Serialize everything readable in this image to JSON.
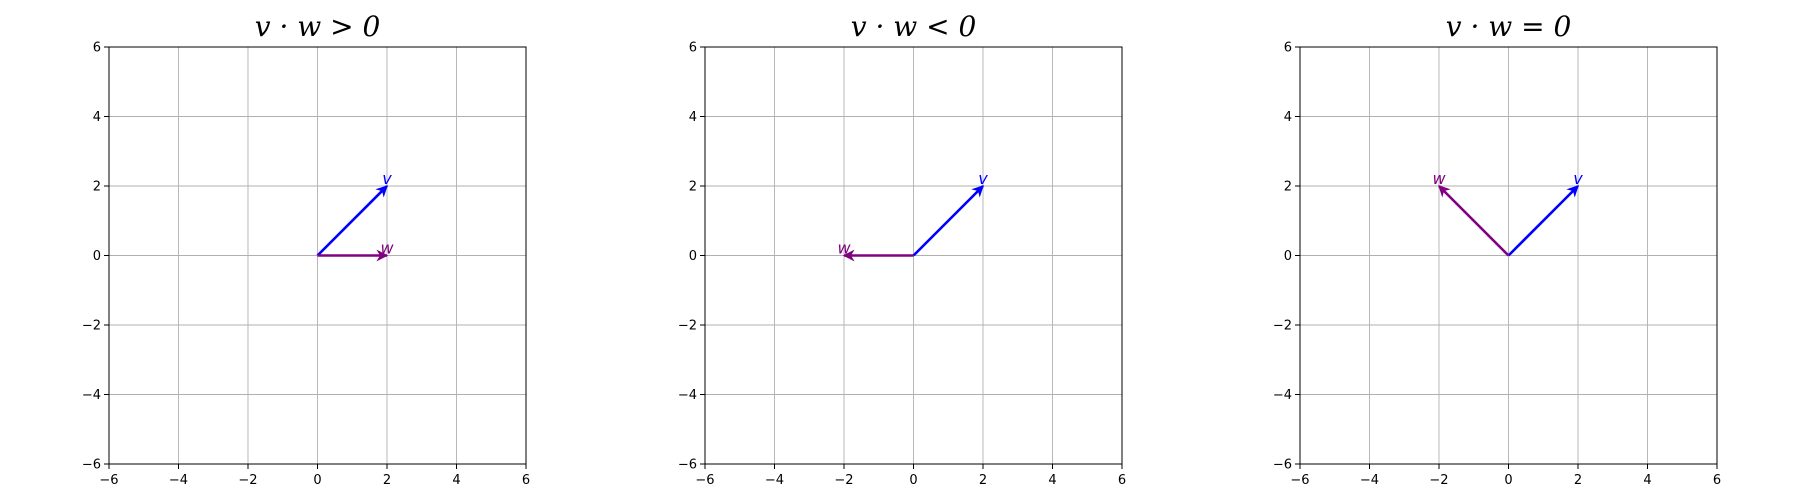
{
  "chart_data": [
    {
      "type": "vector",
      "title": "v · w > 0",
      "xlim": [
        -6,
        6
      ],
      "ylim": [
        -6,
        6
      ],
      "xticks": [
        -6,
        -4,
        -2,
        0,
        2,
        4,
        6
      ],
      "yticks": [
        -6,
        -4,
        -2,
        0,
        2,
        4,
        6
      ],
      "grid": true,
      "vectors": [
        {
          "name": "v",
          "origin": [
            0,
            0
          ],
          "tip": [
            2,
            2
          ],
          "color": "#0000ff"
        },
        {
          "name": "w",
          "origin": [
            0,
            0
          ],
          "tip": [
            2,
            0
          ],
          "color": "#800080"
        }
      ]
    },
    {
      "type": "vector",
      "title": "v · w < 0",
      "xlim": [
        -6,
        6
      ],
      "ylim": [
        -6,
        6
      ],
      "xticks": [
        -6,
        -4,
        -2,
        0,
        2,
        4,
        6
      ],
      "yticks": [
        -6,
        -4,
        -2,
        0,
        2,
        4,
        6
      ],
      "grid": true,
      "vectors": [
        {
          "name": "v",
          "origin": [
            0,
            0
          ],
          "tip": [
            2,
            2
          ],
          "color": "#0000ff"
        },
        {
          "name": "w",
          "origin": [
            0,
            0
          ],
          "tip": [
            -2,
            0
          ],
          "color": "#800080"
        }
      ]
    },
    {
      "type": "vector",
      "title": "v · w = 0",
      "xlim": [
        -6,
        6
      ],
      "ylim": [
        -6,
        6
      ],
      "xticks": [
        -6,
        -4,
        -2,
        0,
        2,
        4,
        6
      ],
      "yticks": [
        -6,
        -4,
        -2,
        0,
        2,
        4,
        6
      ],
      "grid": true,
      "vectors": [
        {
          "name": "v",
          "origin": [
            0,
            0
          ],
          "tip": [
            2,
            2
          ],
          "color": "#0000ff"
        },
        {
          "name": "w",
          "origin": [
            0,
            0
          ],
          "tip": [
            -2,
            2
          ],
          "color": "#800080"
        }
      ]
    }
  ]
}
